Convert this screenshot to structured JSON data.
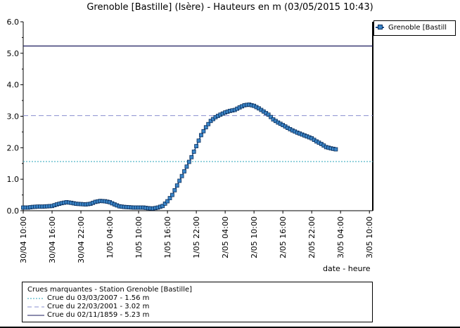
{
  "chart_data": {
    "type": "line",
    "title": "Grenoble [Bastille] (Isère) - Hauteurs en m (03/05/2015 10:43)",
    "xlabel": "date - heure",
    "ylabel": "",
    "ylim": [
      0,
      6
    ],
    "y_ticks": [
      "0.0",
      "1.0",
      "2.0",
      "3.0",
      "4.0",
      "5.0",
      "6.0"
    ],
    "x_range_hours": [
      0,
      72.7
    ],
    "x_ticks": [
      {
        "h": 0,
        "label": "30/04 10:00"
      },
      {
        "h": 6,
        "label": "30/04 16:00"
      },
      {
        "h": 12,
        "label": "30/04 22:00"
      },
      {
        "h": 18,
        "label": "1/05 04:00"
      },
      {
        "h": 24,
        "label": "1/05 10:00"
      },
      {
        "h": 30,
        "label": "1/05 16:00"
      },
      {
        "h": 36,
        "label": "1/05 22:00"
      },
      {
        "h": 42,
        "label": "2/05 04:00"
      },
      {
        "h": 48,
        "label": "2/05 10:00"
      },
      {
        "h": 54,
        "label": "2/05 16:00"
      },
      {
        "h": 60,
        "label": "2/05 22:00"
      },
      {
        "h": 66,
        "label": "3/05 04:00"
      },
      {
        "h": 72,
        "label": "3/05 10:00"
      }
    ],
    "grid": false,
    "legend_position": "right",
    "series": [
      {
        "name": "Grenoble [Bastill",
        "color": "#1f4e8c",
        "marker_color": "#3b86c9",
        "points": [
          [
            0,
            0.1
          ],
          [
            1,
            0.1
          ],
          [
            2,
            0.12
          ],
          [
            3,
            0.13
          ],
          [
            4,
            0.13
          ],
          [
            5,
            0.14
          ],
          [
            6,
            0.15
          ],
          [
            7,
            0.2
          ],
          [
            8,
            0.24
          ],
          [
            9,
            0.27
          ],
          [
            10,
            0.25
          ],
          [
            11,
            0.22
          ],
          [
            12,
            0.21
          ],
          [
            13,
            0.2
          ],
          [
            14,
            0.22
          ],
          [
            15,
            0.28
          ],
          [
            16,
            0.31
          ],
          [
            17,
            0.3
          ],
          [
            18,
            0.27
          ],
          [
            19,
            0.2
          ],
          [
            20,
            0.14
          ],
          [
            21,
            0.12
          ],
          [
            22,
            0.11
          ],
          [
            23,
            0.1
          ],
          [
            24,
            0.1
          ],
          [
            25,
            0.1
          ],
          [
            26,
            0.08
          ],
          [
            27,
            0.07
          ],
          [
            28,
            0.1
          ],
          [
            29,
            0.15
          ],
          [
            30,
            0.3
          ],
          [
            31,
            0.5
          ],
          [
            32,
            0.8
          ],
          [
            33,
            1.1
          ],
          [
            34,
            1.4
          ],
          [
            35,
            1.7
          ],
          [
            36,
            2.05
          ],
          [
            37,
            2.4
          ],
          [
            38,
            2.65
          ],
          [
            39,
            2.85
          ],
          [
            40,
            2.97
          ],
          [
            41,
            3.05
          ],
          [
            42,
            3.12
          ],
          [
            43,
            3.17
          ],
          [
            44,
            3.2
          ],
          [
            45,
            3.28
          ],
          [
            46,
            3.35
          ],
          [
            47,
            3.37
          ],
          [
            48,
            3.33
          ],
          [
            49,
            3.25
          ],
          [
            50,
            3.15
          ],
          [
            51,
            3.05
          ],
          [
            52,
            2.9
          ],
          [
            53,
            2.8
          ],
          [
            54,
            2.72
          ],
          [
            55,
            2.63
          ],
          [
            56,
            2.55
          ],
          [
            57,
            2.48
          ],
          [
            58,
            2.42
          ],
          [
            59,
            2.36
          ],
          [
            60,
            2.3
          ],
          [
            61,
            2.2
          ],
          [
            62,
            2.12
          ],
          [
            63,
            2.02
          ],
          [
            64,
            1.98
          ],
          [
            65,
            1.95
          ]
        ]
      }
    ],
    "reference_lines": [
      {
        "label": "Crue du 03/03/2007 - 1.56 m",
        "value": 1.56,
        "style": "dotted",
        "color": "#2aa6b8"
      },
      {
        "label": "Crue du 22/03/2001 - 3.02 m",
        "value": 3.02,
        "style": "dashed",
        "color": "#8a8fd0"
      },
      {
        "label": "Crue du 02/11/1859 - 5.23 m",
        "value": 5.23,
        "style": "solid",
        "color": "#1a1a5e"
      }
    ],
    "reference_title": "Crues marquantes - Station Grenoble [Bastille]"
  }
}
